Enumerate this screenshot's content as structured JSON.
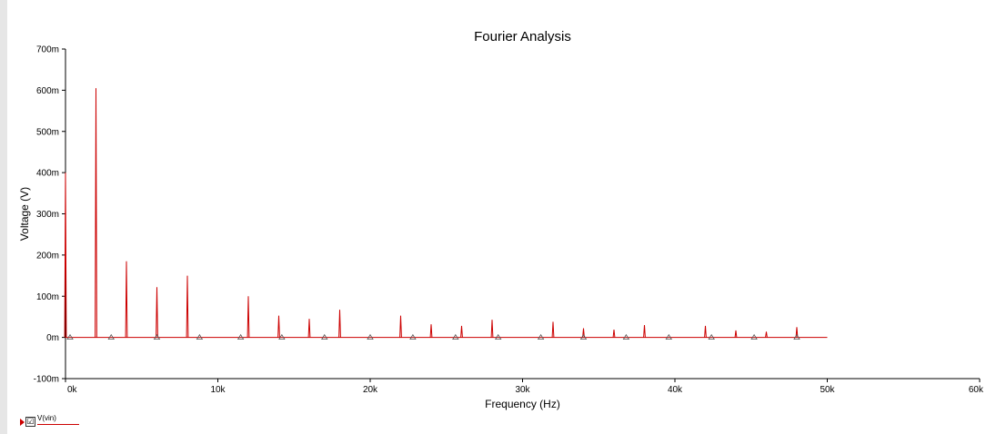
{
  "legend": {
    "label": "V(vin)",
    "checked": true,
    "check_glyph": "☑",
    "color": "#cc0000"
  },
  "chart_data": {
    "type": "line",
    "title": "Fourier Analysis",
    "xlabel": "Frequency (Hz)",
    "ylabel": "Voltage (V)",
    "xlim": [
      0,
      60000
    ],
    "ylim": [
      -100,
      700
    ],
    "y_unit_suffix": "m",
    "x_ticks": [
      0,
      10000,
      20000,
      30000,
      40000,
      50000,
      60000
    ],
    "x_tick_labels": [
      "0k",
      "10k",
      "20k",
      "30k",
      "40k",
      "50k",
      "60k"
    ],
    "y_ticks": [
      -100,
      0,
      100,
      200,
      300,
      400,
      500,
      600,
      700
    ],
    "y_tick_labels": [
      "-100m",
      "0m",
      "100m",
      "200m",
      "300m",
      "400m",
      "500m",
      "600m",
      "700m"
    ],
    "grid": false,
    "line_color": "#cc0000",
    "x_end": 50000,
    "series": [
      {
        "name": "V(vin)",
        "peaks": [
          {
            "x": 0,
            "y": 400
          },
          {
            "x": 2000,
            "y": 605
          },
          {
            "x": 4000,
            "y": 185
          },
          {
            "x": 6000,
            "y": 122
          },
          {
            "x": 8000,
            "y": 150
          },
          {
            "x": 12000,
            "y": 100
          },
          {
            "x": 14000,
            "y": 53
          },
          {
            "x": 16000,
            "y": 45
          },
          {
            "x": 18000,
            "y": 67
          },
          {
            "x": 22000,
            "y": 53
          },
          {
            "x": 24000,
            "y": 32
          },
          {
            "x": 26000,
            "y": 28
          },
          {
            "x": 28000,
            "y": 43
          },
          {
            "x": 32000,
            "y": 38
          },
          {
            "x": 34000,
            "y": 22
          },
          {
            "x": 36000,
            "y": 19
          },
          {
            "x": 38000,
            "y": 30
          },
          {
            "x": 42000,
            "y": 28
          },
          {
            "x": 44000,
            "y": 17
          },
          {
            "x": 46000,
            "y": 14
          },
          {
            "x": 48000,
            "y": 25
          }
        ],
        "markers_x": [
          300,
          3000,
          6000,
          8800,
          11500,
          14200,
          17000,
          20000,
          22800,
          25600,
          28400,
          31200,
          34000,
          36800,
          39600,
          42400,
          45200,
          48000
        ]
      }
    ]
  }
}
